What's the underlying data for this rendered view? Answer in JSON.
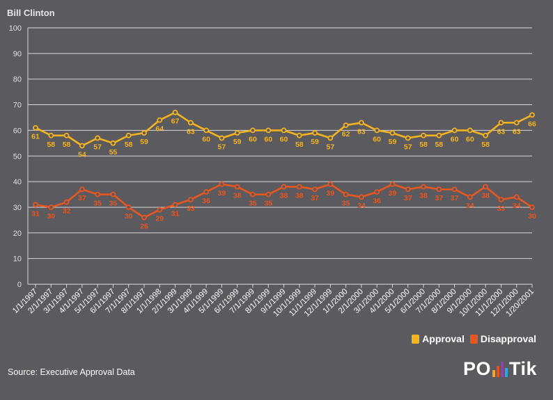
{
  "title": "Bill Clinton",
  "source": "Source: Executive Approval Data",
  "logo": {
    "text_left": "PO",
    "text_right": "Tik",
    "bar_colors": [
      "#f5a623",
      "#e94e1b",
      "#8e44ad",
      "#29a8e0"
    ]
  },
  "chart_data": {
    "type": "line",
    "title": "Bill Clinton",
    "xlabel": "",
    "ylabel": "",
    "ylim": [
      0,
      100
    ],
    "yticks": [
      0,
      10,
      20,
      30,
      40,
      50,
      60,
      70,
      80,
      90,
      100
    ],
    "grid": true,
    "legend_position": "bottom-right",
    "categories": [
      "1/1/1997",
      "2/1/1997",
      "3/1/1997",
      "4/1/1997",
      "5/1/1997",
      "6/1/1997",
      "7/1/1997",
      "8/1/1997",
      "1/1/1998",
      "2/1/1999",
      "3/1/1999",
      "4/1/1999",
      "5/1/1999",
      "6/1/1999",
      "7/1/1999",
      "8/1/1999",
      "9/1/1999",
      "10/1/1999",
      "11/1/1999",
      "12/1/1999",
      "1/1/2000",
      "2/1/2000",
      "3/1/2000",
      "4/1/2000",
      "5/1/2000",
      "6/1/2000",
      "7/1/2000",
      "8/1/2000",
      "9/1/2000",
      "10/1/2000",
      "11/1/2000",
      "12/1/2000",
      "1/20/2001"
    ],
    "series": [
      {
        "name": "Approval",
        "color": "#f5b41d",
        "values": [
          61,
          58,
          58,
          54,
          57,
          55,
          58,
          59,
          64,
          67,
          63,
          60,
          57,
          59,
          60,
          60,
          60,
          58,
          59,
          57,
          62,
          63,
          60,
          59,
          57,
          58,
          58,
          60,
          60,
          58,
          63,
          63,
          66
        ]
      },
      {
        "name": "Disapproval",
        "color": "#e9561f",
        "values": [
          31,
          30,
          32,
          37,
          35,
          35,
          30,
          26,
          29,
          31,
          33,
          36,
          39,
          38,
          35,
          35,
          38,
          38,
          37,
          39,
          35,
          34,
          36,
          39,
          37,
          38,
          37,
          37,
          34,
          38,
          33,
          34,
          30
        ]
      }
    ]
  }
}
